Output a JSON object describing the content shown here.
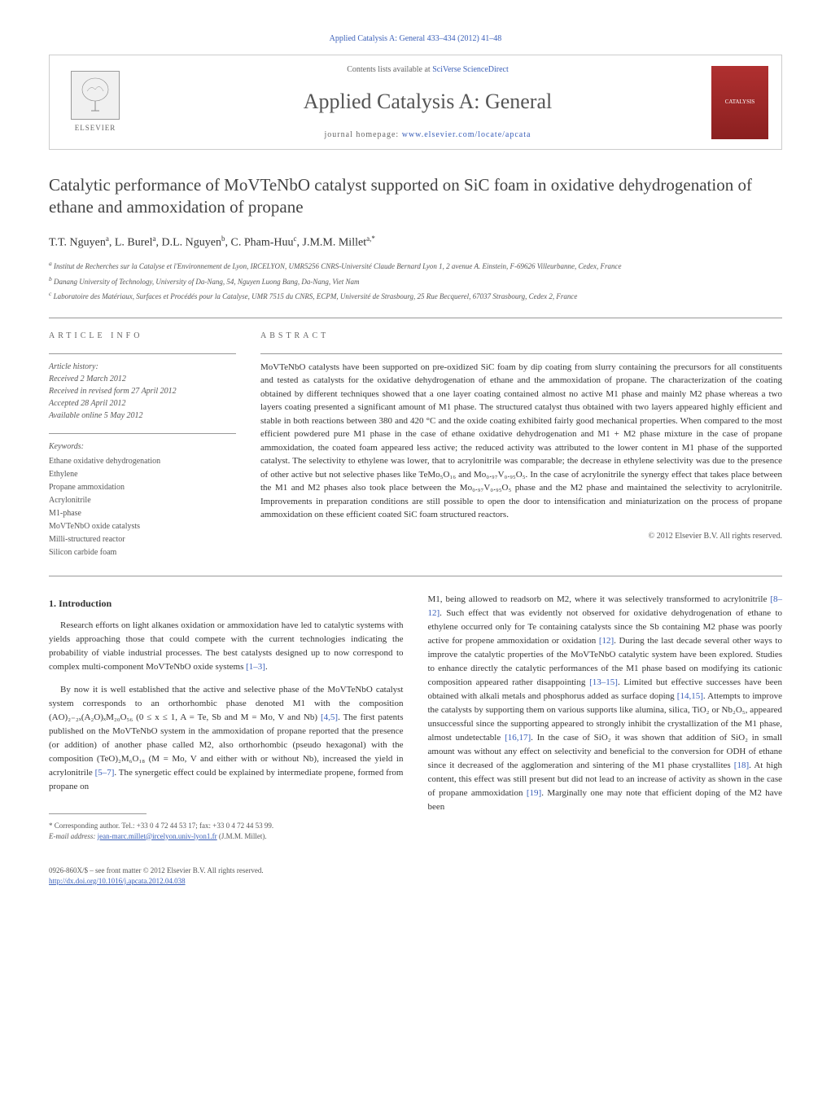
{
  "top_link": "Applied Catalysis A: General 433–434 (2012) 41–48",
  "header": {
    "contents_prefix": "Contents lists available at ",
    "contents_link": "SciVerse ScienceDirect",
    "journal_title": "Applied Catalysis A: General",
    "homepage_prefix": "journal homepage: ",
    "homepage_url": "www.elsevier.com/locate/apcata",
    "elsevier_label": "ELSEVIER",
    "cover_label": "CATALYSIS"
  },
  "article": {
    "title": "Catalytic performance of MoVTeNbO catalyst supported on SiC foam in oxidative dehydrogenation of ethane and ammoxidation of propane",
    "authors_html": "T.T. Nguyen<sup>a</sup>, L. Burel<sup>a</sup>, D.L. Nguyen<sup>b</sup>, C. Pham-Huu<sup>c</sup>, J.M.M. Millet<sup>a,*</sup>",
    "affiliations": {
      "a": "Institut de Recherches sur la Catalyse et l'Environnement de Lyon, IRCELYON, UMR5256 CNRS-Université Claude Bernard Lyon 1, 2 avenue A. Einstein, F-69626 Villeurbanne, Cedex, France",
      "b": "Danang University of Technology, University of Da-Nang, 54, Nguyen Luong Bang, Da-Nang, Viet Nam",
      "c": "Laboratoire des Matériaux, Surfaces et Procédés pour la Catalyse, UMR 7515 du CNRS, ECPM, Université de Strasbourg, 25 Rue Becquerel, 67037 Strasbourg, Cedex 2, France"
    }
  },
  "info": {
    "head": "ARTICLE INFO",
    "history_label": "Article history:",
    "received": "Received 2 March 2012",
    "revised": "Received in revised form 27 April 2012",
    "accepted": "Accepted 28 April 2012",
    "online": "Available online 5 May 2012",
    "keywords_label": "Keywords:",
    "keywords": [
      "Ethane oxidative dehydrogenation",
      "Ethylene",
      "Propane ammoxidation",
      "Acrylonitrile",
      "M1-phase",
      "MoVTeNbO oxide catalysts",
      "Milli-structured reactor",
      "Silicon carbide foam"
    ]
  },
  "abstract": {
    "head": "ABSTRACT",
    "text": "MoVTeNbO catalysts have been supported on pre-oxidized SiC foam by dip coating from slurry containing the precursors for all constituents and tested as catalysts for the oxidative dehydrogenation of ethane and the ammoxidation of propane. The characterization of the coating obtained by different techniques showed that a one layer coating contained almost no active M1 phase and mainly M2 phase whereas a two layers coating presented a significant amount of M1 phase. The structured catalyst thus obtained with two layers appeared highly efficient and stable in both reactions between 380 and 420 °C and the oxide coating exhibited fairly good mechanical properties. When compared to the most efficient powdered pure M1 phase in the case of ethane oxidative dehydrogenation and M1 + M2 phase mixture in the case of propane ammoxidation, the coated foam appeared less active; the reduced activity was attributed to the lower content in M1 phase of the supported catalyst. The selectivity to ethylene was lower, that to acrylonitrile was comparable; the decrease in ethylene selectivity was due to the presence of other active but not selective phases like TeMo₅O₁₆ and Mo₀.₉₇V₀.₉₅O₅. In the case of acrylonitrile the synergy effect that takes place between the M1 and M2 phases also took place between the Mo₀.₉₇V₀.₉₅O₅ phase and the M2 phase and maintained the selectivity to acrylonitrile. Improvements in preparation conditions are still possible to open the door to intensification and miniaturization on the process of propane ammoxidation on these efficient coated SiC foam structured reactors.",
    "copyright": "© 2012 Elsevier B.V. All rights reserved."
  },
  "intro": {
    "heading": "1. Introduction",
    "p1": "Research efforts on light alkanes oxidation or ammoxidation have led to catalytic systems with yields approaching those that could compete with the current technologies indicating the probability of viable industrial processes. The best catalysts designed up to now correspond to complex multi-component MoVTeNbO oxide systems [1–3].",
    "p2": "By now it is well established that the active and selective phase of the MoVTeNbO catalyst system corresponds to an orthorhombic phase denoted M1 with the composition (AO)₂₋₂ₓ(A₂O)ₓM₂₀O₅₆ (0 ≤ x ≤ 1, A = Te, Sb and M = Mo, V and Nb) [4,5]. The first patents published on the MoVTeNbO system in the ammoxidation of propane reported that the presence (or addition) of another phase called M2, also orthorhombic (pseudo hexagonal) with the composition (TeO)₂M₆O₁₈ (M = Mo, V and either with or without Nb), increased the yield in acrylonitrile [5–7]. The synergetic effect could be explained by intermediate propene, formed from propane on",
    "p3": "M1, being allowed to readsorb on M2, where it was selectively transformed to acrylonitrile [8–12]. Such effect that was evidently not observed for oxidative dehydrogenation of ethane to ethylene occurred only for Te containing catalysts since the Sb containing M2 phase was poorly active for propene ammoxidation or oxidation [12]. During the last decade several other ways to improve the catalytic properties of the MoVTeNbO catalytic system have been explored. Studies to enhance directly the catalytic performances of the M1 phase based on modifying its cationic composition appeared rather disappointing [13–15]. Limited but effective successes have been obtained with alkali metals and phosphorus added as surface doping [14,15]. Attempts to improve the catalysts by supporting them on various supports like alumina, silica, TiO₂ or Nb₂O₅, appeared unsuccessful since the supporting appeared to strongly inhibit the crystallization of the M1 phase, almost undetectable [16,17]. In the case of SiO₂ it was shown that addition of SiO₂ in small amount was without any effect on selectivity and beneficial to the conversion for ODH of ethane since it decreased of the agglomeration and sintering of the M1 phase crystallites [18]. At high content, this effect was still present but did not lead to an increase of activity as shown in the case of propane ammoxidation [19]. Marginally one may note that efficient doping of the M2 have been"
  },
  "footnote": {
    "corresponding": "* Corresponding author. Tel.: +33 0 4 72 44 53 17; fax: +33 0 4 72 44 53 99.",
    "email_label": "E-mail address: ",
    "email": "jean-marc.millet@ircelyon.univ-lyon1.fr",
    "email_tail": " (J.M.M. Millet)."
  },
  "bottom": {
    "issn": "0926-860X/$ – see front matter © 2012 Elsevier B.V. All rights reserved.",
    "doi_url": "http://dx.doi.org/10.1016/j.apcata.2012.04.038"
  },
  "colors": {
    "link": "#3a5fb8",
    "text": "#333333",
    "muted": "#666666",
    "border": "#cccccc",
    "cover_bg": "#b03030"
  }
}
